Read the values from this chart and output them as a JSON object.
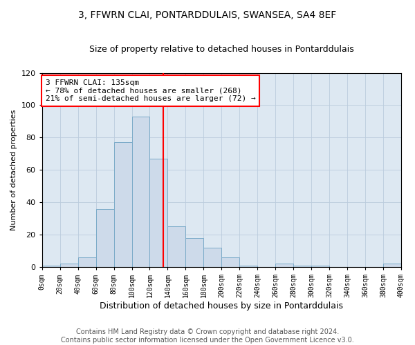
{
  "title": "3, FFWRN CLAI, PONTARDDULAIS, SWANSEA, SA4 8EF",
  "subtitle": "Size of property relative to detached houses in Pontarddulais",
  "xlabel": "Distribution of detached houses by size in Pontarddulais",
  "ylabel": "Number of detached properties",
  "bar_color": "#cddaea",
  "bar_edge_color": "#7aaac8",
  "bin_edges": [
    0,
    20,
    40,
    60,
    80,
    100,
    120,
    140,
    160,
    180,
    200,
    220,
    240,
    260,
    280,
    300,
    320,
    340,
    360,
    380,
    400
  ],
  "bar_heights": [
    1,
    2,
    6,
    36,
    77,
    93,
    67,
    25,
    18,
    12,
    6,
    1,
    0,
    2,
    1,
    1,
    0,
    0,
    0,
    2
  ],
  "vline_x": 135,
  "vline_color": "red",
  "annotation_line1": "3 FFWRN CLAI: 135sqm",
  "annotation_line2": "← 78% of detached houses are smaller (268)",
  "annotation_line3": "21% of semi-detached houses are larger (72) →",
  "annotation_box_color": "white",
  "annotation_box_edge": "red",
  "ylim": [
    0,
    120
  ],
  "yticks": [
    0,
    20,
    40,
    60,
    80,
    100,
    120
  ],
  "xtick_labels": [
    "0sqm",
    "20sqm",
    "40sqm",
    "60sqm",
    "80sqm",
    "100sqm",
    "120sqm",
    "140sqm",
    "160sqm",
    "180sqm",
    "200sqm",
    "220sqm",
    "240sqm",
    "260sqm",
    "280sqm",
    "300sqm",
    "320sqm",
    "340sqm",
    "360sqm",
    "380sqm",
    "400sqm"
  ],
  "grid_color": "#bbccdd",
  "bg_color": "#dde8f2",
  "footer_line1": "Contains HM Land Registry data © Crown copyright and database right 2024.",
  "footer_line2": "Contains public sector information licensed under the Open Government Licence v3.0.",
  "title_fontsize": 10,
  "subtitle_fontsize": 9,
  "annotation_fontsize": 8,
  "footer_fontsize": 7,
  "xlabel_fontsize": 9,
  "ylabel_fontsize": 8
}
